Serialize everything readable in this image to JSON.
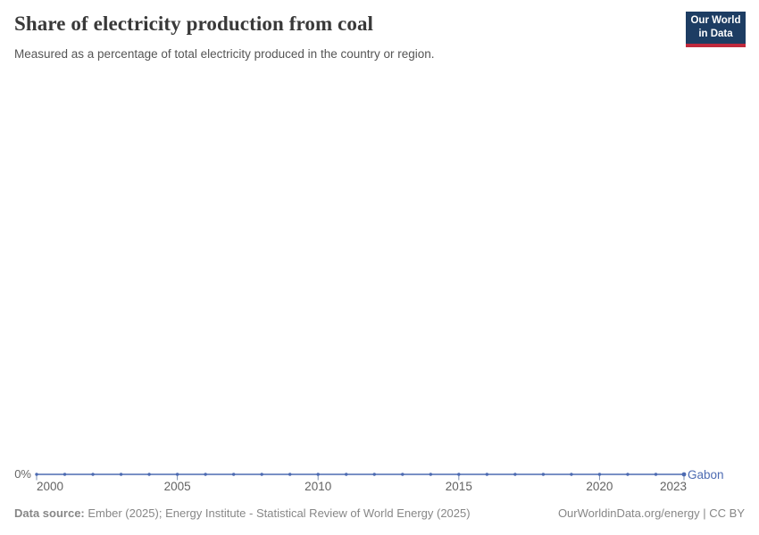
{
  "header": {
    "title": "Share of electricity production from coal",
    "subtitle": "Measured as a percentage of total electricity produced in the country or region.",
    "logo": {
      "line1": "Our World",
      "line2": "in Data",
      "bg_color": "#1d3d63",
      "accent_color": "#c0293c"
    }
  },
  "chart_data": {
    "type": "line",
    "title": "Share of electricity production from coal",
    "xlabel": "",
    "ylabel": "",
    "x_range": [
      2000,
      2023
    ],
    "ylim": [
      0,
      0
    ],
    "grid": false,
    "legend_position": "end-of-line",
    "x_ticks": [
      2000,
      2005,
      2010,
      2015,
      2020,
      2023
    ],
    "y_axis": {
      "tick_label": "0%"
    },
    "series": [
      {
        "name": "Gabon",
        "color": "#4d6bb2",
        "unit": "%",
        "x": [
          2000,
          2001,
          2002,
          2003,
          2004,
          2005,
          2006,
          2007,
          2008,
          2009,
          2010,
          2011,
          2012,
          2013,
          2014,
          2015,
          2016,
          2017,
          2018,
          2019,
          2020,
          2021,
          2022,
          2023
        ],
        "values": [
          0,
          0,
          0,
          0,
          0,
          0,
          0,
          0,
          0,
          0,
          0,
          0,
          0,
          0,
          0,
          0,
          0,
          0,
          0,
          0,
          0,
          0,
          0,
          0
        ]
      }
    ],
    "axis_tick_color": "#7d90b2"
  },
  "footer": {
    "source_label": "Data source:",
    "source_text": " Ember (2025); Energy Institute - Statistical Review of World Energy (2025)",
    "right_text": "OurWorldinData.org/energy | CC BY"
  }
}
